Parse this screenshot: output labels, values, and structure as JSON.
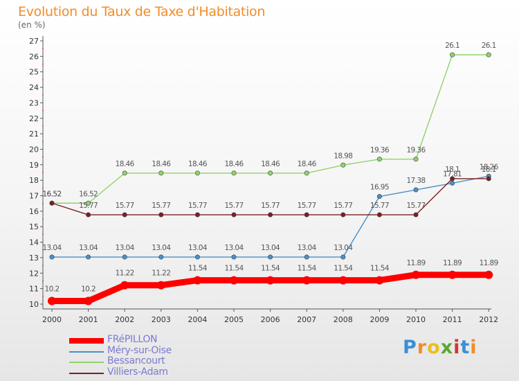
{
  "chart_data": {
    "type": "line",
    "title": "Evolution du Taux de Taxe d'Habitation",
    "subtitle": "(en %)",
    "categories": [
      "2000",
      "2001",
      "2002",
      "2003",
      "2004",
      "2005",
      "2006",
      "2007",
      "2008",
      "2009",
      "2010",
      "2011",
      "2012"
    ],
    "ylim": [
      10,
      27
    ],
    "yticks": [
      "10",
      "11",
      "12",
      "13",
      "14",
      "15",
      "16",
      "17",
      "18",
      "19",
      "20",
      "21",
      "22",
      "23",
      "24",
      "25",
      "26",
      "27"
    ],
    "grid": false,
    "legend_position": "bottom-left",
    "series": [
      {
        "name": "FRéPILLON",
        "color": "#ff0000",
        "values": [
          10.2,
          10.2,
          11.22,
          11.22,
          11.54,
          11.54,
          11.54,
          11.54,
          11.54,
          11.54,
          11.89,
          11.89,
          11.89
        ],
        "labels": [
          "10.2",
          "10.2",
          "11.22",
          "11.22",
          "11.54",
          "11.54",
          "11.54",
          "11.54",
          "11.54",
          "11.54",
          "11.89",
          "11.89",
          "11.89"
        ]
      },
      {
        "name": "Méry-sur-Oise",
        "color": "#4a90c8",
        "values": [
          13.04,
          13.04,
          13.04,
          13.04,
          13.04,
          13.04,
          13.04,
          13.04,
          13.04,
          16.95,
          17.38,
          17.81,
          18.26
        ],
        "labels": [
          "13.04",
          "13.04",
          "13.04",
          "13.04",
          "13.04",
          "13.04",
          "13.04",
          "13.04",
          "13.04",
          "16.95",
          "17.38",
          "17.81",
          "18.26"
        ]
      },
      {
        "name": "Bessancourt",
        "color": "#8fd36a",
        "values": [
          16.52,
          16.52,
          18.46,
          18.46,
          18.46,
          18.46,
          18.46,
          18.46,
          18.98,
          19.36,
          19.36,
          26.1,
          26.1
        ],
        "labels": [
          "16.52",
          "16.52",
          "18.46",
          "18.46",
          "18.46",
          "18.46",
          "18.46",
          "18.46",
          "18.98",
          "19.36",
          "19.36",
          "26.1",
          "26.1"
        ]
      },
      {
        "name": "Villiers-Adam",
        "color": "#7a2020",
        "values": [
          16.52,
          15.77,
          15.77,
          15.77,
          15.77,
          15.77,
          15.77,
          15.77,
          15.77,
          15.77,
          15.77,
          18.1,
          18.1
        ],
        "labels": [
          "16.52",
          "15.77",
          "15.77",
          "15.77",
          "15.77",
          "15.77",
          "15.77",
          "15.77",
          "15.77",
          "15.77",
          "15.77",
          "18.1",
          "18.1"
        ]
      }
    ]
  },
  "logo": {
    "letters": [
      "P",
      "r",
      "o",
      "x",
      "i",
      "t",
      "i"
    ],
    "colors": [
      "#3a8fd6",
      "#f28c28",
      "#e8c020",
      "#5aa830",
      "#d8342c",
      "#3a8fd6",
      "#f28c28"
    ]
  }
}
